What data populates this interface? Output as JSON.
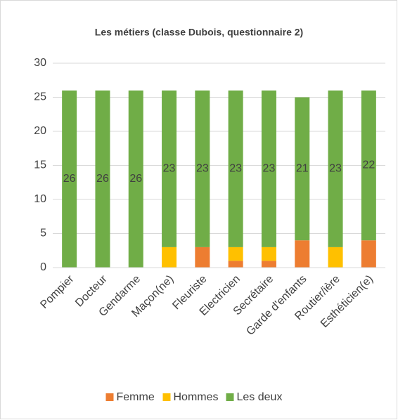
{
  "chart_data": {
    "type": "stacked_bar",
    "title": "Les métiers (classe Dubois, questionnaire 2)",
    "categories": [
      "Pompier",
      "Docteur",
      "Gendarme",
      "Maçon(ne)",
      "Fleuriste",
      "Electricien",
      "Secrétaire",
      "Garde d'enfants",
      "Routier/ière",
      "Esthéticien(e)"
    ],
    "series": [
      {
        "name": "Femme",
        "color": "#ed7d31",
        "values": [
          0,
          0,
          0,
          0,
          3,
          1,
          1,
          4,
          0,
          4
        ]
      },
      {
        "name": "Hommes",
        "color": "#ffc000",
        "values": [
          0,
          0,
          0,
          3,
          0,
          2,
          2,
          0,
          3,
          0
        ]
      },
      {
        "name": "Les deux",
        "color": "#70ad47",
        "values": [
          26,
          26,
          26,
          23,
          23,
          23,
          23,
          21,
          23,
          22
        ]
      }
    ],
    "ylim": [
      0,
      30
    ],
    "yticks": [
      0,
      5,
      10,
      15,
      20,
      25,
      30
    ],
    "grid": true,
    "legend": "bottom"
  }
}
